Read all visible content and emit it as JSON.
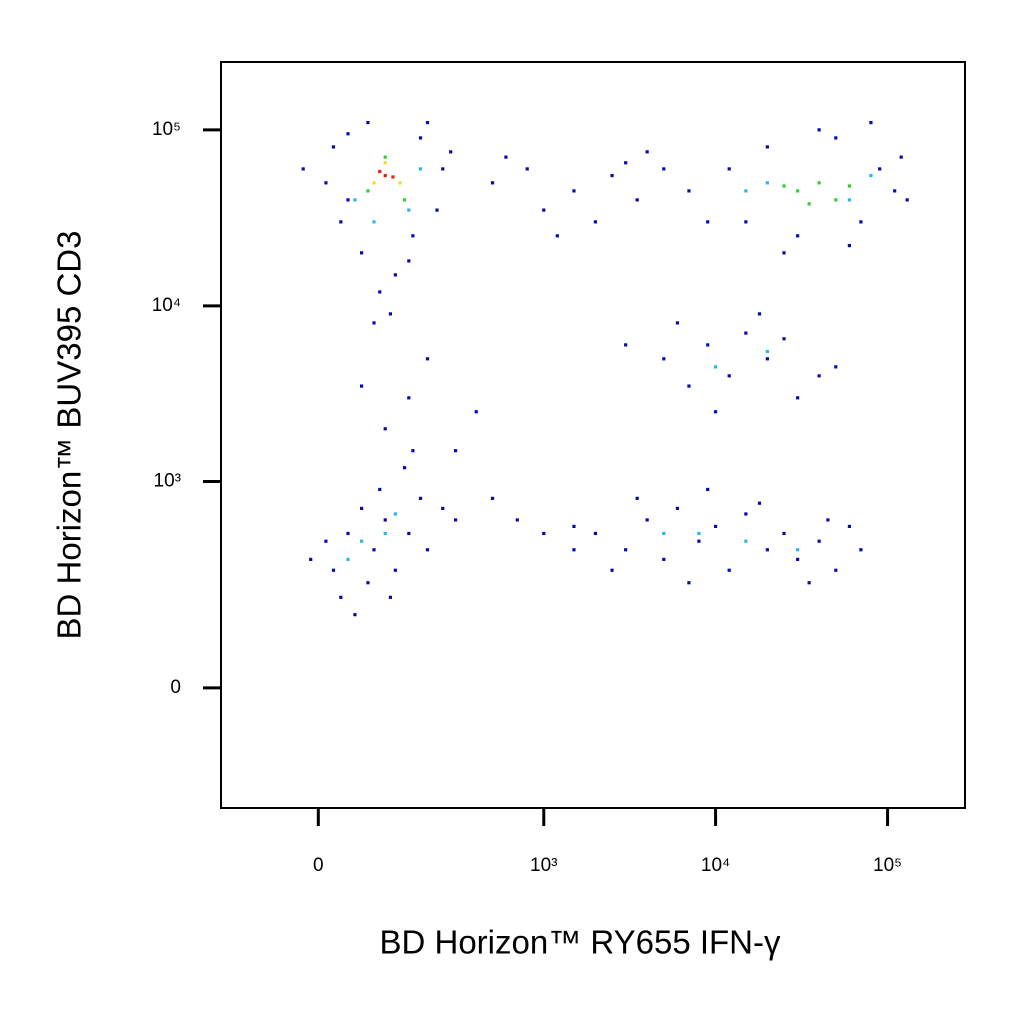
{
  "chart_data": {
    "type": "scatter",
    "x_label": "BD Horizon™ RY655 IFN-γ",
    "y_label": "BD Horizon™ BUV395 CD3",
    "xscale": "arcsinh",
    "yscale": "arcsinh",
    "xlim": [
      -167,
      282000
    ],
    "ylim": [
      -311,
      243000
    ],
    "xticks": [
      0,
      {
        "value": 1000,
        "label": "10³"
      },
      {
        "value": 10000,
        "label": "10⁴"
      },
      {
        "value": 100000,
        "label": "10⁵"
      }
    ],
    "yticks": [
      0,
      {
        "value": 1000,
        "label": "10³"
      },
      {
        "value": 10000,
        "label": "10⁴"
      },
      {
        "value": 100000,
        "label": "10⁵"
      }
    ],
    "series": [
      {
        "color": "#0a0aa8",
        "x": [
          20,
          40,
          180,
          250,
          230,
          30,
          60,
          150,
          90,
          120,
          10,
          -20,
          280,
          200,
          70,
          160,
          40,
          110,
          500,
          800,
          1500,
          2500,
          3500,
          5000,
          7000,
          1000,
          600,
          2000,
          4000,
          9000,
          1200,
          3000,
          12000,
          15000,
          20000,
          30000,
          50000,
          70000,
          90000,
          110000,
          120000,
          80000,
          40000,
          25000,
          60000,
          130000,
          5000,
          7000,
          9000,
          12000,
          15000,
          20000,
          30000,
          25000,
          40000,
          6000,
          10000,
          18000,
          3000,
          50000,
          20,
          40,
          60,
          80,
          100,
          120,
          150,
          180,
          30,
          70,
          200,
          10,
          90,
          140,
          50,
          110,
          -10,
          160,
          250,
          300,
          100,
          150,
          200,
          80,
          300,
          400,
          500,
          700,
          1000,
          1500,
          60,
          2000,
          3000,
          4000,
          5000,
          6000,
          8000,
          10000,
          12000,
          15000,
          20000,
          25000,
          30000,
          40000,
          50000,
          60000,
          3500,
          7000,
          18000,
          35000,
          45000,
          2500,
          9000,
          70000,
          1500
        ],
        "y": [
          80000,
          95000,
          90000,
          60000,
          35000,
          30000,
          20000,
          18000,
          12000,
          15000,
          50000,
          60000,
          75000,
          110000,
          110000,
          25000,
          40000,
          9000,
          50000,
          60000,
          45000,
          55000,
          40000,
          60000,
          45000,
          35000,
          70000,
          30000,
          75000,
          30000,
          25000,
          65000,
          60000,
          30000,
          80000,
          25000,
          90000,
          30000,
          60000,
          45000,
          70000,
          110000,
          100000,
          20000,
          22000,
          40000,
          5000,
          3500,
          6000,
          4000,
          7000,
          5000,
          3000,
          6500,
          4000,
          8000,
          2500,
          9000,
          6000,
          4500,
          300,
          500,
          700,
          400,
          600,
          300,
          500,
          800,
          200,
          250,
          400,
          450,
          900,
          1200,
          150,
          200,
          350,
          1500,
          700,
          600,
          2000,
          3000,
          5000,
          8000,
          1500,
          2500,
          800,
          600,
          500,
          400,
          3500,
          500,
          400,
          600,
          350,
          700,
          450,
          550,
          300,
          650,
          400,
          500,
          350,
          450,
          300,
          550,
          800,
          250,
          750,
          250,
          600,
          300,
          900,
          400,
          550
        ]
      },
      {
        "color": "#28b8e8",
        "x": [
          50,
          150,
          80,
          180,
          20000,
          60000,
          80000,
          15000,
          10000,
          20000,
          60,
          100,
          40,
          120,
          8000,
          15000,
          30000,
          5000
        ],
        "y": [
          40000,
          35000,
          30000,
          60000,
          50000,
          40000,
          55000,
          45000,
          4500,
          5500,
          450,
          500,
          350,
          650,
          500,
          450,
          400,
          500
        ]
      },
      {
        "color": "#30d030",
        "x": [
          70,
          140,
          100,
          30000,
          40000,
          50000,
          25000,
          60000,
          35000
        ],
        "y": [
          45000,
          40000,
          70000,
          45000,
          50000,
          40000,
          48000,
          48000,
          38000
        ]
      },
      {
        "color": "#e8e018",
        "x": [
          80,
          130,
          100
        ],
        "y": [
          50000,
          50000,
          65000
        ]
      },
      {
        "color": "#e82010",
        "x": [
          100,
          90,
          115
        ],
        "y": [
          55000,
          58000,
          54000
        ]
      }
    ]
  }
}
